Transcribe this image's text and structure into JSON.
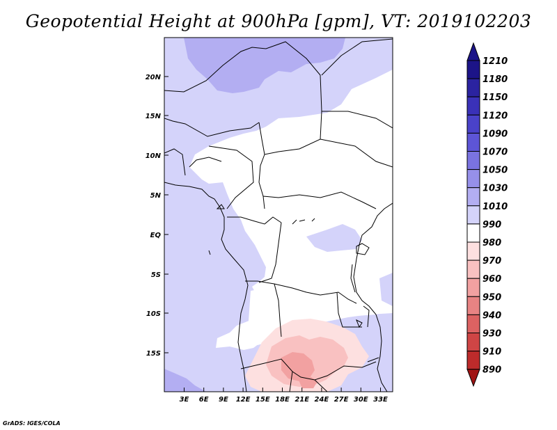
{
  "title": "Geopotential Height at 900hPa [gpm], VT: 2019102203",
  "credit": "GrADS: IGES/COLA",
  "map": {
    "lat_labels": [
      "20N",
      "15N",
      "10N",
      "5N",
      "EQ",
      "5S",
      "10S",
      "15S"
    ],
    "lon_labels": [
      "3E",
      "6E",
      "9E",
      "12E",
      "15E",
      "18E",
      "21E",
      "24E",
      "27E",
      "30E",
      "33E"
    ]
  },
  "colorbar": {
    "levels": [
      "1210",
      "1180",
      "1150",
      "1120",
      "1090",
      "1070",
      "1050",
      "1030",
      "1010",
      "990",
      "980",
      "970",
      "960",
      "950",
      "940",
      "930",
      "910",
      "890"
    ],
    "colors": [
      "#1c1488",
      "#2b23a0",
      "#3a31b8",
      "#4a42c9",
      "#5d55d6",
      "#7a73e0",
      "#9690ea",
      "#b3aef2",
      "#d4d3fa",
      "#ffffff",
      "#fde0e0",
      "#f9c1c1",
      "#f2a1a1",
      "#e88383",
      "#dc6262",
      "#cf4545",
      "#bd2b2b",
      "#a01414"
    ]
  }
}
